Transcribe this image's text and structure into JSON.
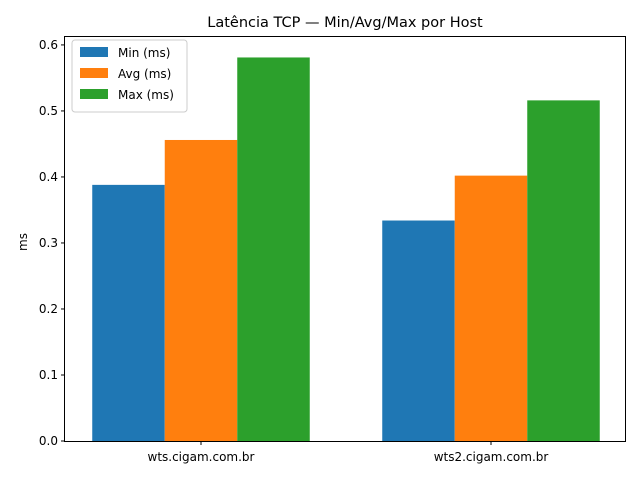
{
  "chart_data": {
    "type": "bar",
    "title": "Latência TCP — Min/Avg/Max por Host",
    "xlabel": "",
    "ylabel": "ms",
    "categories": [
      "wts.cigam.com.br",
      "wts2.cigam.com.br"
    ],
    "series": [
      {
        "name": "Min (ms)",
        "values": [
          0.388,
          0.334
        ],
        "color": "#1f77b4"
      },
      {
        "name": "Avg (ms)",
        "values": [
          0.456,
          0.402
        ],
        "color": "#ff7f0e"
      },
      {
        "name": "Max (ms)",
        "values": [
          0.581,
          0.516
        ],
        "color": "#2ca02c"
      }
    ],
    "ylim": [
      0,
      0.612
    ],
    "yticks": [
      "0.0",
      "0.1",
      "0.2",
      "0.3",
      "0.4",
      "0.5",
      "0.6"
    ],
    "grid": false,
    "legend_position": "top-left"
  }
}
